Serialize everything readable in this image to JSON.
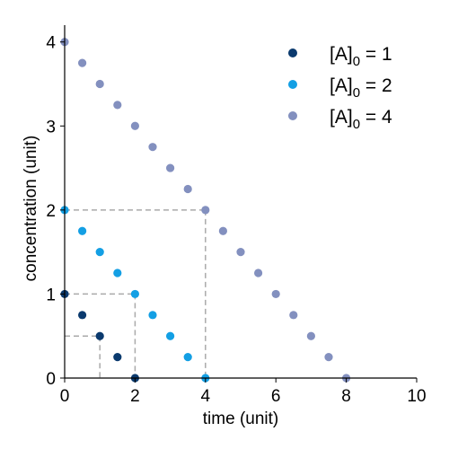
{
  "chart_data": {
    "type": "scatter",
    "xlabel": "time (unit)",
    "ylabel": "concentration (unit)",
    "xlim": [
      0,
      10
    ],
    "ylim": [
      0,
      4.2
    ],
    "x_ticks": [
      0,
      2,
      4,
      6,
      8,
      10
    ],
    "y_ticks": [
      0,
      1,
      2,
      3,
      4
    ],
    "grid": false,
    "legend_position": "top-right",
    "series": [
      {
        "name_main": "[A]",
        "name_sub": "0",
        "name_suffix": " = 1",
        "color": "#0b3a6e",
        "x": [
          0,
          0.5,
          1,
          1.5,
          2
        ],
        "y": [
          1,
          0.75,
          0.5,
          0.25,
          0
        ]
      },
      {
        "name_main": "[A]",
        "name_sub": "0",
        "name_suffix": " = 2",
        "color": "#139fe4",
        "x": [
          0,
          0.5,
          1,
          1.5,
          2,
          2.5,
          3,
          3.5,
          4
        ],
        "y": [
          2,
          1.75,
          1.5,
          1.25,
          1,
          0.75,
          0.5,
          0.25,
          0
        ]
      },
      {
        "name_main": "[A]",
        "name_sub": "0",
        "name_suffix": " = 4",
        "color": "#8390bf",
        "x": [
          0,
          0.5,
          1,
          1.5,
          2,
          2.5,
          3,
          3.5,
          4,
          4.5,
          5,
          5.5,
          6,
          6.5,
          7,
          7.5,
          8
        ],
        "y": [
          4,
          3.75,
          3.5,
          3.25,
          3,
          2.75,
          2.5,
          2.25,
          2,
          1.75,
          1.5,
          1.25,
          1,
          0.75,
          0.5,
          0.25,
          0
        ]
      }
    ],
    "reference_lines": [
      {
        "x": 1,
        "y": 0.5
      },
      {
        "x": 2,
        "y": 1
      },
      {
        "x": 4,
        "y": 2
      }
    ],
    "reference_line_color": "#aaaaaa"
  }
}
